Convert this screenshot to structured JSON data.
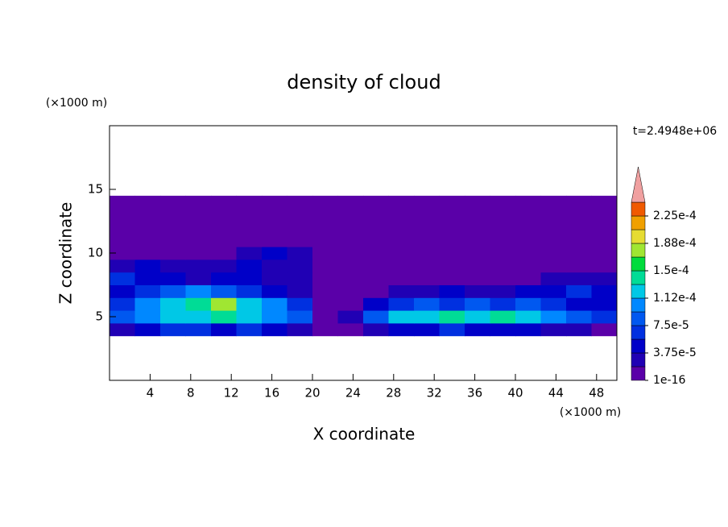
{
  "chart_data": {
    "type": "contour",
    "title": "density of cloud",
    "time_label": "t=2.4948e+06",
    "xlabel": "X coordinate",
    "ylabel": "Z coordinate",
    "x_unit": "(×1000 m)",
    "y_unit": "(×1000 m)",
    "xlim": [
      0,
      50
    ],
    "ylim": [
      0,
      20
    ],
    "xticks": [
      4,
      8,
      12,
      16,
      20,
      24,
      28,
      32,
      36,
      40,
      44,
      48
    ],
    "yticks": [
      5,
      10,
      15
    ],
    "x": [
      1.25,
      3.75,
      6.25,
      8.75,
      11.25,
      13.75,
      16.25,
      18.75,
      21.25,
      23.75,
      26.25,
      28.75,
      31.25,
      33.75,
      36.25,
      38.75,
      41.25,
      43.75,
      46.25,
      48.75
    ],
    "y": [
      4,
      5,
      6,
      7,
      8,
      9,
      10,
      11,
      12,
      13,
      14
    ],
    "z": [
      [
        2.5e-05,
        4.5e-05,
        6e-05,
        6e-05,
        4.5e-05,
        6e-05,
        4.5e-05,
        2.5e-05,
        5e-06,
        5e-06,
        2.5e-05,
        4.5e-05,
        4.5e-05,
        6e-05,
        4.5e-05,
        4.5e-05,
        4.5e-05,
        2.5e-05,
        2.5e-05,
        5e-06
      ],
      [
        8e-05,
        0.0001,
        0.00012,
        0.00012,
        0.00014,
        0.00012,
        0.0001,
        8e-05,
        5e-06,
        2.5e-05,
        8e-05,
        0.00012,
        0.00012,
        0.00014,
        0.00012,
        0.00014,
        0.00012,
        0.0001,
        8e-05,
        6e-05
      ],
      [
        6e-05,
        0.0001,
        0.00012,
        0.00014,
        0.00018,
        0.00012,
        0.0001,
        6e-05,
        5e-06,
        5e-06,
        4.5e-05,
        6e-05,
        8e-05,
        6e-05,
        8e-05,
        6e-05,
        8e-05,
        6e-05,
        4.5e-05,
        4.5e-05
      ],
      [
        4.5e-05,
        6e-05,
        8e-05,
        0.0001,
        8e-05,
        6e-05,
        4.5e-05,
        2.5e-05,
        5e-06,
        5e-06,
        5e-06,
        2.5e-05,
        2.5e-05,
        4.5e-05,
        2.5e-05,
        2.5e-05,
        4.5e-05,
        4.5e-05,
        6e-05,
        4.5e-05
      ],
      [
        6e-05,
        4.5e-05,
        4.5e-05,
        2.5e-05,
        4.5e-05,
        4.5e-05,
        2.5e-05,
        2.5e-05,
        5e-06,
        5e-06,
        5e-06,
        5e-06,
        5e-06,
        5e-06,
        5e-06,
        5e-06,
        5e-06,
        2.5e-05,
        2.5e-05,
        2.5e-05
      ],
      [
        2.5e-05,
        4.5e-05,
        2.5e-05,
        2.5e-05,
        2.5e-05,
        4.5e-05,
        2.5e-05,
        2.5e-05,
        5e-06,
        5e-06,
        5e-06,
        5e-06,
        5e-06,
        5e-06,
        5e-06,
        5e-06,
        5e-06,
        5e-06,
        5e-06,
        5e-06
      ],
      [
        5e-06,
        5e-06,
        5e-06,
        5e-06,
        5e-06,
        2.5e-05,
        4.5e-05,
        2.5e-05,
        5e-06,
        5e-06,
        5e-06,
        5e-06,
        5e-06,
        5e-06,
        5e-06,
        5e-06,
        5e-06,
        5e-06,
        5e-06,
        5e-06
      ],
      [
        5e-06,
        5e-06,
        5e-06,
        5e-06,
        5e-06,
        5e-06,
        5e-06,
        5e-06,
        5e-06,
        5e-06,
        5e-06,
        5e-06,
        5e-06,
        5e-06,
        5e-06,
        5e-06,
        5e-06,
        5e-06,
        5e-06,
        5e-06
      ],
      [
        5e-06,
        5e-06,
        5e-06,
        5e-06,
        5e-06,
        5e-06,
        5e-06,
        5e-06,
        5e-06,
        5e-06,
        5e-06,
        5e-06,
        5e-06,
        5e-06,
        5e-06,
        5e-06,
        5e-06,
        5e-06,
        5e-06,
        5e-06
      ],
      [
        5e-06,
        5e-06,
        5e-06,
        5e-06,
        5e-06,
        5e-06,
        5e-06,
        5e-06,
        5e-06,
        5e-06,
        5e-06,
        5e-06,
        5e-06,
        5e-06,
        5e-06,
        5e-06,
        5e-06,
        5e-06,
        5e-06,
        5e-06
      ],
      [
        5e-06,
        5e-06,
        5e-06,
        5e-06,
        5e-06,
        5e-06,
        5e-06,
        5e-06,
        5e-06,
        5e-06,
        5e-06,
        5e-06,
        5e-06,
        5e-06,
        5e-06,
        5e-06,
        5e-06,
        5e-06,
        5e-06,
        5e-06
      ]
    ],
    "levels": [
      1e-16,
      1.875e-05,
      3.75e-05,
      5.625e-05,
      7.5e-05,
      9.375e-05,
      0.0001125,
      0.00013125,
      0.00015,
      0.00016875,
      0.0001875,
      0.00020625,
      0.000225,
      0.00024375
    ],
    "colors": [
      "#5a00a8",
      "#2000b4",
      "#0000c8",
      "#0030e0",
      "#0058f0",
      "#0088ff",
      "#00c8e6",
      "#00dc96",
      "#00dc3c",
      "#a0e632",
      "#e6dc32",
      "#f0a000",
      "#f05a00",
      "#f0a0a0"
    ],
    "colorbar_ticks": [
      {
        "value": 1e-16,
        "label": "1e-16"
      },
      {
        "value": 3.75e-05,
        "label": "3.75e-5"
      },
      {
        "value": 7.5e-05,
        "label": "7.5e-5"
      },
      {
        "value": 0.0001125,
        "label": "1.12e-4"
      },
      {
        "value": 0.00015,
        "label": "1.5e-4"
      },
      {
        "value": 0.0001875,
        "label": "1.88e-4"
      },
      {
        "value": 0.000225,
        "label": "2.25e-4"
      }
    ]
  }
}
